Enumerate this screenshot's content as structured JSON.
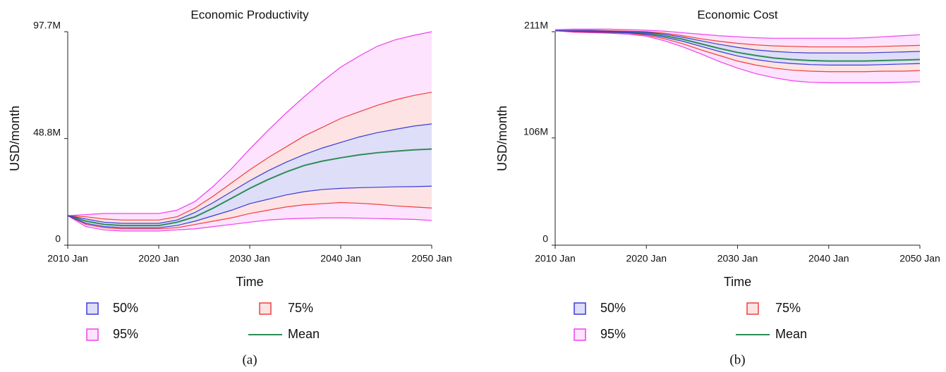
{
  "chart_data": [
    {
      "type": "line",
      "title": "Economic Productivity",
      "xlabel": "Time",
      "ylabel": "USD/month",
      "panel_label": "(a)",
      "x": [
        2010,
        2012,
        2014,
        2016,
        2018,
        2020,
        2022,
        2024,
        2026,
        2028,
        2030,
        2032,
        2034,
        2036,
        2038,
        2040,
        2042,
        2044,
        2046,
        2048,
        2050
      ],
      "xlim": [
        2010,
        2050
      ],
      "xticks": [
        {
          "value": 2010,
          "label": "2010 Jan"
        },
        {
          "value": 2020,
          "label": "2020 Jan"
        },
        {
          "value": 2030,
          "label": "2030 Jan"
        },
        {
          "value": 2040,
          "label": "2040 Jan"
        },
        {
          "value": 2050,
          "label": "2050 Jan"
        }
      ],
      "ylim": [
        0,
        97700000
      ],
      "yticks": [
        0,
        {
          "value": 48800000,
          "label": "48.8M"
        },
        {
          "value": 97700000,
          "label": "97.7M"
        }
      ],
      "series": [
        {
          "name": "50%",
          "color": "#3b3bd9",
          "fill": "#dedef8",
          "upper": [
            13500000,
            12000000,
            10500000,
            10000000,
            10000000,
            10000000,
            11500000,
            15000000,
            19500000,
            24500000,
            29500000,
            34000000,
            38000000,
            41500000,
            44500000,
            47000000,
            49500000,
            51500000,
            53000000,
            54500000,
            55500000
          ],
          "lower": [
            13500000,
            10000000,
            8500000,
            8000000,
            8000000,
            8000000,
            9000000,
            11000000,
            13500000,
            16000000,
            19000000,
            21000000,
            23000000,
            24500000,
            25500000,
            26000000,
            26300000,
            26500000,
            26700000,
            26800000,
            27000000
          ]
        },
        {
          "name": "75%",
          "color": "#ee4040",
          "fill": "#fde3e3",
          "upper": [
            13500000,
            13000000,
            12000000,
            11500000,
            11500000,
            11500000,
            13000000,
            17000000,
            22500000,
            28500000,
            34500000,
            40000000,
            45000000,
            50000000,
            54000000,
            58000000,
            61000000,
            64000000,
            66500000,
            68500000,
            70000000
          ],
          "lower": [
            13500000,
            9500000,
            8000000,
            7500000,
            7500000,
            7500000,
            8000000,
            9500000,
            11000000,
            12500000,
            14500000,
            16000000,
            17500000,
            18500000,
            19000000,
            19500000,
            19200000,
            18700000,
            18000000,
            17500000,
            17000000
          ]
        },
        {
          "name": "95%",
          "color": "#ee40ee",
          "fill": "#fde3fd",
          "upper": [
            13500000,
            14000000,
            14500000,
            14500000,
            14500000,
            14500000,
            16000000,
            20000000,
            27000000,
            35000000,
            44000000,
            52500000,
            60500000,
            68000000,
            75000000,
            81500000,
            86500000,
            91000000,
            94000000,
            96000000,
            97700000
          ],
          "lower": [
            13500000,
            8500000,
            7000000,
            6500000,
            6500000,
            6500000,
            7000000,
            7500000,
            8500000,
            9500000,
            10500000,
            11500000,
            12000000,
            12300000,
            12500000,
            12500000,
            12400000,
            12200000,
            12000000,
            11800000,
            11300000
          ]
        },
        {
          "name": "Mean",
          "color": "#2e8b57",
          "values": [
            13500000,
            11000000,
            9500000,
            9000000,
            9000000,
            9000000,
            10500000,
            13000000,
            17000000,
            21500000,
            26000000,
            30000000,
            33500000,
            36500000,
            38500000,
            40000000,
            41300000,
            42300000,
            43000000,
            43600000,
            44000000
          ]
        }
      ]
    },
    {
      "type": "line",
      "title": "Economic Cost",
      "xlabel": "Time",
      "ylabel": "USD/month",
      "panel_label": "(b)",
      "x": [
        2010,
        2012,
        2014,
        2016,
        2018,
        2020,
        2022,
        2024,
        2026,
        2028,
        2030,
        2032,
        2034,
        2036,
        2038,
        2040,
        2042,
        2044,
        2046,
        2048,
        2050
      ],
      "xlim": [
        2010,
        2050
      ],
      "xticks": [
        {
          "value": 2010,
          "label": "2010 Jan"
        },
        {
          "value": 2020,
          "label": "2020 Jan"
        },
        {
          "value": 2030,
          "label": "2030 Jan"
        },
        {
          "value": 2040,
          "label": "2040 Jan"
        },
        {
          "value": 2050,
          "label": "2050 Jan"
        }
      ],
      "ylim": [
        0,
        211000000
      ],
      "yticks": [
        0,
        {
          "value": 106000000,
          "label": "106M"
        },
        {
          "value": 211000000,
          "label": "211M"
        }
      ],
      "series": [
        {
          "name": "50%",
          "color": "#3b3bd9",
          "fill": "#dedef8",
          "upper": [
            212000000,
            212000000,
            212000000,
            211500000,
            211000000,
            210500000,
            208500000,
            205500000,
            202000000,
            198500000,
            195500000,
            193000000,
            191500000,
            190500000,
            190000000,
            190000000,
            190000000,
            190000000,
            190500000,
            191000000,
            191500000
          ],
          "lower": [
            212000000,
            211500000,
            211000000,
            210500000,
            210000000,
            208500000,
            205500000,
            201500000,
            196500000,
            191500000,
            187000000,
            183500000,
            181000000,
            179500000,
            178500000,
            178000000,
            178000000,
            178000000,
            178500000,
            179000000,
            179500000
          ]
        },
        {
          "name": "75%",
          "color": "#ee4040",
          "fill": "#fde3e3",
          "upper": [
            212000000,
            212500000,
            212500000,
            212000000,
            211500000,
            211000000,
            209500000,
            207000000,
            204000000,
            201500000,
            199500000,
            198000000,
            197000000,
            196500000,
            196000000,
            196000000,
            196000000,
            196000000,
            196500000,
            197000000,
            197500000
          ],
          "lower": [
            212000000,
            211000000,
            210500000,
            210000000,
            209500000,
            207500000,
            204000000,
            199000000,
            193000000,
            187500000,
            182000000,
            178000000,
            175000000,
            173000000,
            172000000,
            171500000,
            171500000,
            171500000,
            172000000,
            172000000,
            172500000
          ]
        },
        {
          "name": "95%",
          "color": "#ee40ee",
          "fill": "#fde3fd",
          "upper": [
            213000000,
            213500000,
            213500000,
            213500000,
            213000000,
            212500000,
            211500000,
            210000000,
            208500000,
            207000000,
            206000000,
            205000000,
            204500000,
            204500000,
            204500000,
            204500000,
            204500000,
            205000000,
            206000000,
            207000000,
            208000000
          ],
          "lower": [
            212000000,
            210500000,
            210000000,
            209500000,
            208500000,
            206500000,
            202000000,
            196000000,
            189000000,
            181500000,
            175000000,
            169500000,
            165500000,
            162500000,
            161000000,
            160500000,
            160500000,
            160500000,
            160500000,
            161000000,
            161500000
          ]
        },
        {
          "name": "Mean",
          "color": "#2e8b57",
          "values": [
            212000000,
            212000000,
            211500000,
            211000000,
            210500000,
            209500000,
            207000000,
            203500000,
            199000000,
            194500000,
            190500000,
            187500000,
            185000000,
            183500000,
            182500000,
            182000000,
            182000000,
            182000000,
            182500000,
            183000000,
            183500000
          ]
        }
      ]
    }
  ]
}
